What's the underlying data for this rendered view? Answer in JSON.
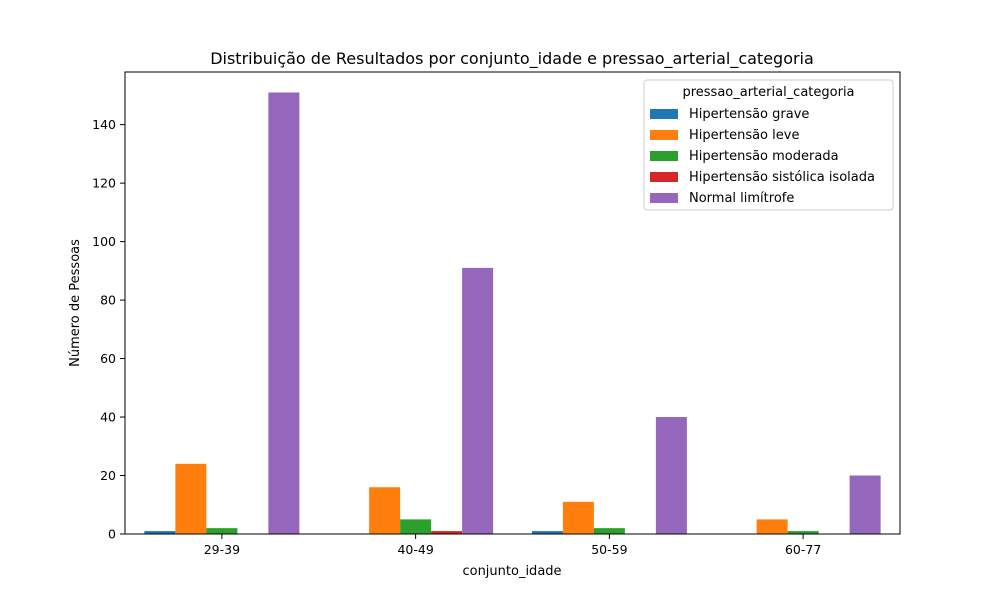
{
  "chart_data": {
    "type": "bar",
    "title": "Distribuição de Resultados por conjunto_idade e pressao_arterial_categoria",
    "xlabel": "conjunto_idade",
    "ylabel": "Número de Pessoas",
    "categories": [
      "29-39",
      "40-49",
      "50-59",
      "60-77"
    ],
    "ylim": [
      0,
      158
    ],
    "yticks": [
      0,
      20,
      40,
      60,
      80,
      100,
      120,
      140
    ],
    "legend": {
      "title": "pressao_arterial_categoria",
      "placement": "top-right"
    },
    "series": [
      {
        "name": "Hipertensão grave",
        "color": "#1f77b4",
        "values": [
          1,
          0,
          1,
          0
        ]
      },
      {
        "name": "Hipertensão leve",
        "color": "#ff7f0e",
        "values": [
          24,
          16,
          11,
          5
        ]
      },
      {
        "name": "Hipertensão moderada",
        "color": "#2ca02c",
        "values": [
          2,
          5,
          2,
          1
        ]
      },
      {
        "name": "Hipertensão sistólica isolada",
        "color": "#d62728",
        "values": [
          0,
          1,
          0,
          0
        ]
      },
      {
        "name": "Normal limítrofe",
        "color": "#9467bd",
        "values": [
          151,
          91,
          40,
          20
        ]
      }
    ]
  }
}
